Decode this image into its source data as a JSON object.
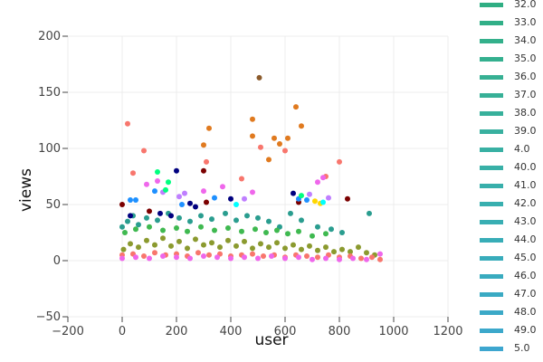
{
  "chart_data": {
    "type": "scatter",
    "xlabel": "user",
    "ylabel": "views",
    "xlim": [
      -200,
      1200
    ],
    "ylim": [
      -50,
      200
    ],
    "x_ticks": [
      "−200",
      "0",
      "200",
      "400",
      "600",
      "800",
      "1000",
      "1200"
    ],
    "y_ticks": [
      "−50",
      "0",
      "50",
      "100",
      "150",
      "200"
    ],
    "grid": true,
    "legend_placement": "right",
    "legend": [
      {
        "label": "32.0",
        "color": "#2fae83"
      },
      {
        "label": "33.0",
        "color": "#31af87"
      },
      {
        "label": "34.0",
        "color": "#33b08b"
      },
      {
        "label": "35.0",
        "color": "#34b08f"
      },
      {
        "label": "36.0",
        "color": "#36b093"
      },
      {
        "label": "37.0",
        "color": "#37b097"
      },
      {
        "label": "38.0",
        "color": "#37b09b"
      },
      {
        "label": "39.0",
        "color": "#38b09f"
      },
      {
        "label": "4.0",
        "color": "#38b0a3"
      },
      {
        "label": "40.0",
        "color": "#38b0a7"
      },
      {
        "label": "41.0",
        "color": "#38afab"
      },
      {
        "label": "42.0",
        "color": "#38afaf"
      },
      {
        "label": "43.0",
        "color": "#38aeb3"
      },
      {
        "label": "44.0",
        "color": "#38adb7"
      },
      {
        "label": "45.0",
        "color": "#38acbb"
      },
      {
        "label": "46.0",
        "color": "#39abbf"
      },
      {
        "label": "47.0",
        "color": "#3aaac3"
      },
      {
        "label": "48.0",
        "color": "#3ba9c7"
      },
      {
        "label": "49.0",
        "color": "#3ca8cb"
      },
      {
        "label": "5.0",
        "color": "#3da6cf"
      }
    ],
    "series": [
      {
        "color": "#2a9d8f",
        "points": [
          [
            0,
            30
          ],
          [
            20,
            35
          ],
          [
            40,
            40
          ],
          [
            60,
            32
          ],
          [
            90,
            38
          ],
          [
            130,
            36
          ],
          [
            170,
            42
          ],
          [
            210,
            38
          ],
          [
            250,
            35
          ],
          [
            290,
            40
          ],
          [
            330,
            37
          ],
          [
            380,
            42
          ],
          [
            420,
            36
          ],
          [
            460,
            40
          ],
          [
            500,
            38
          ],
          [
            540,
            35
          ],
          [
            580,
            30
          ],
          [
            620,
            42
          ],
          [
            660,
            36
          ],
          [
            720,
            30
          ],
          [
            770,
            28
          ],
          [
            810,
            25
          ],
          [
            910,
            42
          ]
        ]
      },
      {
        "color": "#3fb950",
        "points": [
          [
            10,
            25
          ],
          [
            50,
            28
          ],
          [
            100,
            30
          ],
          [
            150,
            27
          ],
          [
            200,
            29
          ],
          [
            240,
            26
          ],
          [
            290,
            30
          ],
          [
            340,
            27
          ],
          [
            390,
            29
          ],
          [
            440,
            26
          ],
          [
            490,
            28
          ],
          [
            530,
            25
          ],
          [
            570,
            27
          ],
          [
            610,
            24
          ],
          [
            650,
            26
          ],
          [
            700,
            22
          ],
          [
            750,
            24
          ]
        ]
      },
      {
        "color": "#8b9a2f",
        "points": [
          [
            5,
            10
          ],
          [
            30,
            15
          ],
          [
            60,
            12
          ],
          [
            90,
            18
          ],
          [
            120,
            14
          ],
          [
            150,
            20
          ],
          [
            180,
            13
          ],
          [
            210,
            17
          ],
          [
            240,
            11
          ],
          [
            270,
            19
          ],
          [
            300,
            14
          ],
          [
            330,
            16
          ],
          [
            360,
            12
          ],
          [
            390,
            18
          ],
          [
            420,
            13
          ],
          [
            450,
            17
          ],
          [
            480,
            11
          ],
          [
            510,
            15
          ],
          [
            540,
            12
          ],
          [
            570,
            16
          ],
          [
            600,
            11
          ],
          [
            630,
            14
          ],
          [
            660,
            10
          ],
          [
            690,
            13
          ],
          [
            720,
            9
          ],
          [
            750,
            12
          ],
          [
            780,
            8
          ],
          [
            810,
            10
          ],
          [
            840,
            8
          ],
          [
            870,
            12
          ],
          [
            900,
            7
          ],
          [
            930,
            5
          ]
        ]
      },
      {
        "color": "#f8766d",
        "points": [
          [
            0,
            5
          ],
          [
            40,
            6
          ],
          [
            80,
            4
          ],
          [
            120,
            7
          ],
          [
            160,
            5
          ],
          [
            200,
            6
          ],
          [
            240,
            4
          ],
          [
            280,
            7
          ],
          [
            320,
            5
          ],
          [
            360,
            6
          ],
          [
            400,
            4
          ],
          [
            440,
            5
          ],
          [
            480,
            6
          ],
          [
            520,
            4
          ],
          [
            560,
            5
          ],
          [
            600,
            3
          ],
          [
            640,
            5
          ],
          [
            680,
            4
          ],
          [
            720,
            3
          ],
          [
            760,
            5
          ],
          [
            800,
            3
          ],
          [
            840,
            4
          ],
          [
            880,
            2
          ],
          [
            920,
            3
          ],
          [
            950,
            1
          ],
          [
            20,
            122
          ],
          [
            80,
            98
          ],
          [
            40,
            78
          ],
          [
            310,
            88
          ],
          [
            440,
            73
          ],
          [
            600,
            98
          ],
          [
            510,
            101
          ],
          [
            800,
            88
          ],
          [
            750,
            75
          ]
        ]
      },
      {
        "color": "#ef67eb",
        "points": [
          [
            0,
            2
          ],
          [
            50,
            3
          ],
          [
            100,
            2
          ],
          [
            150,
            4
          ],
          [
            200,
            3
          ],
          [
            250,
            2
          ],
          [
            300,
            4
          ],
          [
            350,
            3
          ],
          [
            400,
            2
          ],
          [
            450,
            3
          ],
          [
            500,
            2
          ],
          [
            550,
            4
          ],
          [
            600,
            2
          ],
          [
            650,
            3
          ],
          [
            700,
            1
          ],
          [
            750,
            2
          ],
          [
            800,
            1
          ],
          [
            850,
            2
          ],
          [
            900,
            1
          ],
          [
            950,
            6
          ],
          [
            130,
            71
          ],
          [
            90,
            68
          ],
          [
            370,
            66
          ],
          [
            480,
            61
          ],
          [
            720,
            70
          ],
          [
            740,
            74
          ],
          [
            300,
            62
          ]
        ]
      },
      {
        "color": "#e07a1f",
        "points": [
          [
            320,
            118
          ],
          [
            480,
            126
          ],
          [
            640,
            137
          ],
          [
            660,
            120
          ],
          [
            540,
            90
          ],
          [
            560,
            109
          ],
          [
            580,
            104
          ],
          [
            610,
            109
          ],
          [
            300,
            103
          ],
          [
            480,
            111
          ]
        ]
      },
      {
        "color": "#8b5a2b",
        "points": [
          [
            505,
            163
          ]
        ]
      },
      {
        "color": "#7b0000",
        "points": [
          [
            0,
            50
          ],
          [
            100,
            44
          ],
          [
            300,
            80
          ],
          [
            830,
            55
          ],
          [
            650,
            52
          ],
          [
            310,
            52
          ]
        ]
      },
      {
        "color": "#00007f",
        "points": [
          [
            30,
            40
          ],
          [
            200,
            80
          ],
          [
            250,
            51
          ],
          [
            270,
            48
          ],
          [
            400,
            55
          ],
          [
            630,
            60
          ],
          [
            140,
            42
          ],
          [
            180,
            40
          ]
        ]
      },
      {
        "color": "#1e90ff",
        "points": [
          [
            30,
            54
          ],
          [
            50,
            54
          ],
          [
            120,
            62
          ],
          [
            340,
            56
          ],
          [
            650,
            55
          ],
          [
            680,
            54
          ],
          [
            220,
            50
          ]
        ]
      },
      {
        "color": "#bf7fff",
        "points": [
          [
            150,
            61
          ],
          [
            210,
            57
          ],
          [
            230,
            60
          ],
          [
            450,
            55
          ],
          [
            690,
            59
          ],
          [
            760,
            56
          ]
        ]
      },
      {
        "color": "#00ff7f",
        "points": [
          [
            130,
            79
          ],
          [
            160,
            63
          ],
          [
            170,
            70
          ],
          [
            660,
            58
          ]
        ]
      },
      {
        "color": "#ffd700",
        "points": [
          [
            710,
            53
          ],
          [
            730,
            51
          ]
        ]
      },
      {
        "color": "#00ffff",
        "points": [
          [
            740,
            52
          ],
          [
            420,
            50
          ]
        ]
      }
    ]
  }
}
